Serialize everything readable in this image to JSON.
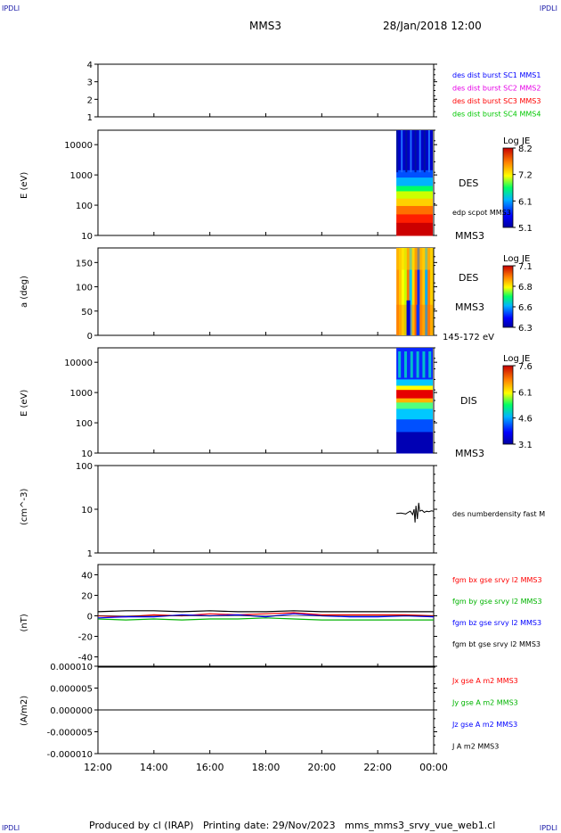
{
  "corners": {
    "top_left": "IPDLI",
    "top_right": "IPDLI",
    "bottom_left": "IPDLI",
    "bottom_right": "IPDLI"
  },
  "header": {
    "spacecraft": "MMS3",
    "datetime": "28/Jan/2018 12:00"
  },
  "footer": {
    "text": "Produced by cl (IRAP)   Printing date: 29/Nov/2023   mms_mms3_srvy_vue_web1.cl"
  },
  "colors": {
    "mms1": "#0000ff",
    "mms2": "#e600e6",
    "mms3": "#ff0000",
    "mms4": "#00c800",
    "black": "#000000",
    "green": "#00b400"
  },
  "chart_data": [
    {
      "type": "line",
      "panel": "burst-flags",
      "ylim": [
        1,
        4
      ],
      "yticks": [
        "1",
        "2",
        "3",
        "4"
      ],
      "legend": [
        {
          "name": "des dist burst SC1 MMS1",
          "color": "#0000ff"
        },
        {
          "name": "des dist burst SC2 MMS2",
          "color": "#e600e6"
        },
        {
          "name": "des dist burst SC3 MMS3",
          "color": "#ff0000"
        },
        {
          "name": "des dist burst SC4 MMS4",
          "color": "#00c800"
        }
      ]
    },
    {
      "type": "heatmap",
      "panel": "des-energy",
      "ylabel": "E (eV)",
      "yscale": "log",
      "ylim": [
        10,
        30000
      ],
      "yticks": [
        "10",
        "100",
        "1000",
        "10000"
      ],
      "data_start": "22:40",
      "data_end": "00:00",
      "labels": {
        "instrument": "DES",
        "note": "edp scpot MMS3",
        "spacecraft": "MMS3"
      },
      "colorbar": {
        "title": "Log JE",
        "ticks": [
          "8.2",
          "7.2",
          "6.1",
          "5.1"
        ]
      }
    },
    {
      "type": "heatmap",
      "panel": "des-pitch-angle",
      "ylabel": "a (deg)",
      "ylim": [
        0,
        180
      ],
      "yticks": [
        "0",
        "50",
        "100",
        "150"
      ],
      "data_start": "22:40",
      "data_end": "00:00",
      "labels": {
        "instrument": "DES",
        "spacecraft": "MMS3",
        "energy_range": "145-172 eV"
      },
      "colorbar": {
        "title": "Log JE",
        "ticks": [
          "7.1",
          "6.8",
          "6.6",
          "6.3"
        ]
      }
    },
    {
      "type": "heatmap",
      "panel": "dis-energy",
      "ylabel": "E (eV)",
      "yscale": "log",
      "ylim": [
        10,
        30000
      ],
      "yticks": [
        "10",
        "100",
        "1000",
        "10000"
      ],
      "data_start": "22:40",
      "data_end": "00:00",
      "labels": {
        "instrument": "DIS",
        "spacecraft": "MMS3"
      },
      "colorbar": {
        "title": "Log JE",
        "ticks": [
          "7.6",
          "6.1",
          "4.6",
          "3.1"
        ]
      }
    },
    {
      "type": "line",
      "panel": "density",
      "ylabel": "(cm^-3)",
      "yscale": "log",
      "ylim": [
        1,
        100
      ],
      "yticks": [
        "1",
        "10",
        "100"
      ],
      "series": [
        {
          "name": "des numberdensity fast M",
          "color": "#000000",
          "x": [
            "22:40",
            "22:50",
            "23:00",
            "23:05",
            "23:10",
            "23:15",
            "23:18",
            "23:20",
            "23:22",
            "23:25",
            "23:28",
            "23:30",
            "23:35",
            "23:40",
            "23:45",
            "23:50",
            "23:55",
            "00:00"
          ],
          "y": [
            8,
            8.2,
            7.8,
            8.5,
            9,
            7.5,
            10,
            5,
            12,
            6,
            14,
            9,
            9.5,
            8.5,
            9,
            8.8,
            9.2,
            9
          ]
        }
      ]
    },
    {
      "type": "line",
      "panel": "magnetic-field",
      "ylabel": "(nT)",
      "ylim": [
        -50,
        50
      ],
      "yticks": [
        "-40",
        "-20",
        "0",
        "20",
        "40"
      ],
      "series": [
        {
          "name": "fgm bx gse srvy l2 MMS3",
          "color": "#ff0000",
          "x": [
            "12:00",
            "13:00",
            "14:00",
            "15:00",
            "16:00",
            "17:00",
            "18:00",
            "19:00",
            "20:00",
            "21:00",
            "22:00",
            "23:00",
            "00:00"
          ],
          "y": [
            0,
            -1,
            1,
            0,
            2,
            1,
            2,
            3,
            1,
            1,
            1,
            1,
            0
          ]
        },
        {
          "name": "fgm by gse srvy l2 MMS3",
          "color": "#00b400",
          "x": [
            "12:00",
            "13:00",
            "14:00",
            "15:00",
            "16:00",
            "17:00",
            "18:00",
            "19:00",
            "20:00",
            "21:00",
            "22:00",
            "23:00",
            "00:00"
          ],
          "y": [
            -3,
            -4,
            -3,
            -4,
            -3,
            -3,
            -2,
            -3,
            -4,
            -4,
            -4,
            -4,
            -4
          ]
        },
        {
          "name": "fgm bz gse srvy l2 MMS3",
          "color": "#0000ff",
          "x": [
            "12:00",
            "13:00",
            "14:00",
            "15:00",
            "16:00",
            "17:00",
            "18:00",
            "19:00",
            "20:00",
            "21:00",
            "22:00",
            "23:00",
            "00:00"
          ],
          "y": [
            -2,
            -1,
            -1,
            1,
            0,
            1,
            -1,
            2,
            0,
            -1,
            -1,
            0,
            -1
          ]
        },
        {
          "name": "fgm bt gse srvy l2 MMS3",
          "color": "#000000",
          "x": [
            "12:00",
            "13:00",
            "14:00",
            "15:00",
            "16:00",
            "17:00",
            "18:00",
            "19:00",
            "20:00",
            "21:00",
            "22:00",
            "23:00",
            "00:00"
          ],
          "y": [
            4,
            5,
            5,
            4,
            5,
            4,
            4,
            5,
            4,
            4,
            4,
            4,
            4
          ]
        }
      ]
    },
    {
      "type": "line",
      "panel": "current-density",
      "ylabel": "(A/m2)",
      "ylim": [
        -1e-05,
        1e-05
      ],
      "yticks": [
        "-0.000010",
        "-0.000005",
        "0.000000",
        "0.000005",
        "0.000010"
      ],
      "series": [
        {
          "name": "Jx gse A m2 MMS3",
          "color": "#ff0000"
        },
        {
          "name": "Jy gse A m2 MMS3",
          "color": "#00b400"
        },
        {
          "name": "Jz gse A m2 MMS3",
          "color": "#0000ff"
        },
        {
          "name": "J A m2 MMS3",
          "color": "#000000"
        }
      ]
    }
  ],
  "xaxis": {
    "ticks": [
      "12:00",
      "14:00",
      "16:00",
      "18:00",
      "20:00",
      "22:00",
      "00:00"
    ]
  }
}
